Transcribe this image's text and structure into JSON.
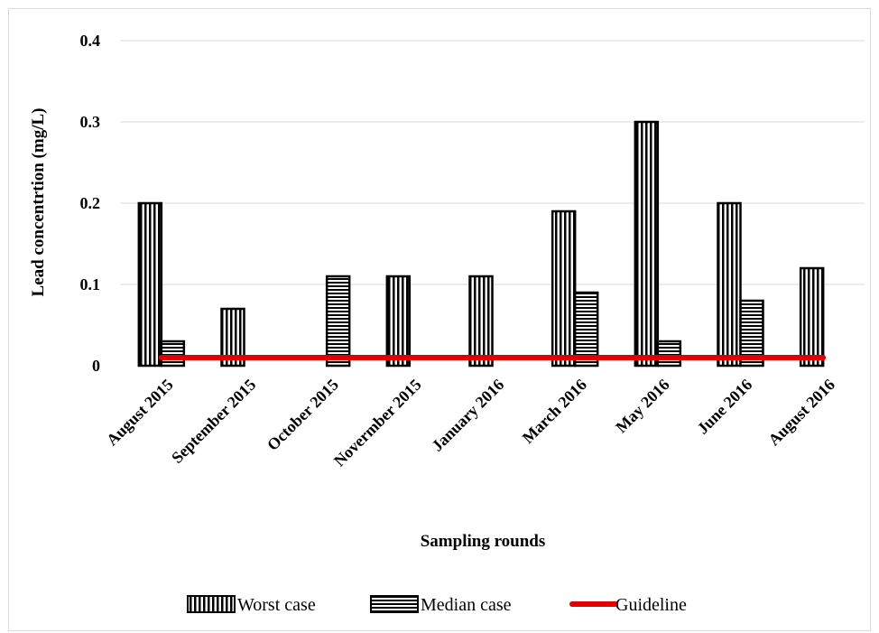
{
  "chart_data": {
    "type": "bar",
    "title": "",
    "xlabel": "Sampling rounds",
    "ylabel": "Lead concentrtion (mg/L)",
    "ylim": [
      0,
      0.4
    ],
    "yticks": [
      0,
      0.1,
      0.2,
      0.3,
      0.4
    ],
    "ytick_labels": [
      "0",
      "0.1",
      "0.2",
      "0.3",
      "0.4"
    ],
    "grid": "horizontal",
    "legend_position": "bottom",
    "categories": [
      "August 2015",
      "September 2015",
      "October 2015",
      "Novermber 2015",
      "January 2016",
      "March 2016",
      "May 2016",
      "June 2016",
      "August 2016"
    ],
    "series": [
      {
        "name": "Worst case",
        "kind": "bar",
        "pattern": "vertical-stripes",
        "values": [
          0.2,
          0.07,
          0,
          0.11,
          0.11,
          0.19,
          0.3,
          0.2,
          0.12
        ]
      },
      {
        "name": "Median case",
        "kind": "bar",
        "pattern": "horizontal-stripes",
        "values": [
          0.03,
          0,
          0.11,
          0,
          0,
          0.09,
          0.03,
          0.08,
          0
        ]
      },
      {
        "name": "Guideline",
        "kind": "line",
        "color": "#e00000",
        "values": [
          0.01,
          0.01,
          0.01,
          0.01,
          0.01,
          0.01,
          0.01,
          0.01,
          0.01
        ]
      }
    ]
  }
}
